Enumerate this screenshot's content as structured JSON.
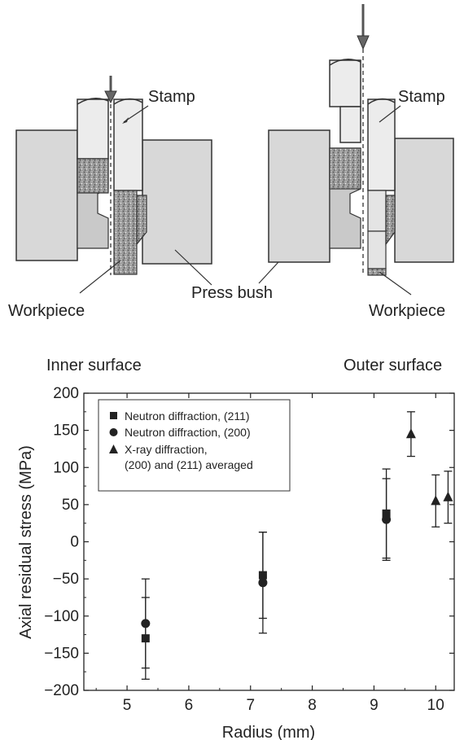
{
  "diagram": {
    "left": {
      "stamp_label": "Stamp",
      "workpiece_label": "Workpiece"
    },
    "right": {
      "stamp_label": "Stamp",
      "workpiece_label": "Workpiece"
    },
    "press_bush_label": "Press bush"
  },
  "chart_data": {
    "type": "scatter",
    "title": "",
    "xlabel": "Radius (mm)",
    "ylabel": "Axial residual stress (MPa)",
    "xlim": [
      4.3,
      10.3
    ],
    "ylim": [
      -200,
      200
    ],
    "xticks": [
      5,
      6,
      7,
      8,
      9,
      10
    ],
    "yticks": [
      200,
      150,
      100,
      50,
      0,
      -50,
      -100,
      -150,
      -200
    ],
    "annotations": {
      "left": "Inner surface",
      "right": "Outer surface"
    },
    "legend_position": "top-left",
    "series": [
      {
        "name": "Neutron diffraction, (211)",
        "marker": "square",
        "points": [
          {
            "x": 5.3,
            "y": -130,
            "err": 55
          },
          {
            "x": 7.2,
            "y": -45,
            "err": 58
          },
          {
            "x": 9.2,
            "y": 38,
            "err": 60
          }
        ]
      },
      {
        "name": "Neutron diffraction, (200)",
        "marker": "circle",
        "points": [
          {
            "x": 5.3,
            "y": -110,
            "err": 60
          },
          {
            "x": 7.2,
            "y": -55,
            "err": 68
          },
          {
            "x": 9.2,
            "y": 30,
            "err": 55
          }
        ]
      },
      {
        "name": "X-ray diffraction,",
        "name_line2": "(200) and (211) averaged",
        "marker": "triangle",
        "points": [
          {
            "x": 9.6,
            "y": 145,
            "err": 30
          },
          {
            "x": 10.0,
            "y": 55,
            "err": 35
          },
          {
            "x": 10.2,
            "y": 60,
            "err": 35
          }
        ]
      }
    ]
  },
  "colors": {
    "ink": "#1c1c1c",
    "die_fill": "#d8d8d8",
    "die_face": "#c4c4c4",
    "stamp_fill": "#ececec",
    "workpiece_fill": "#9a9a9a"
  }
}
